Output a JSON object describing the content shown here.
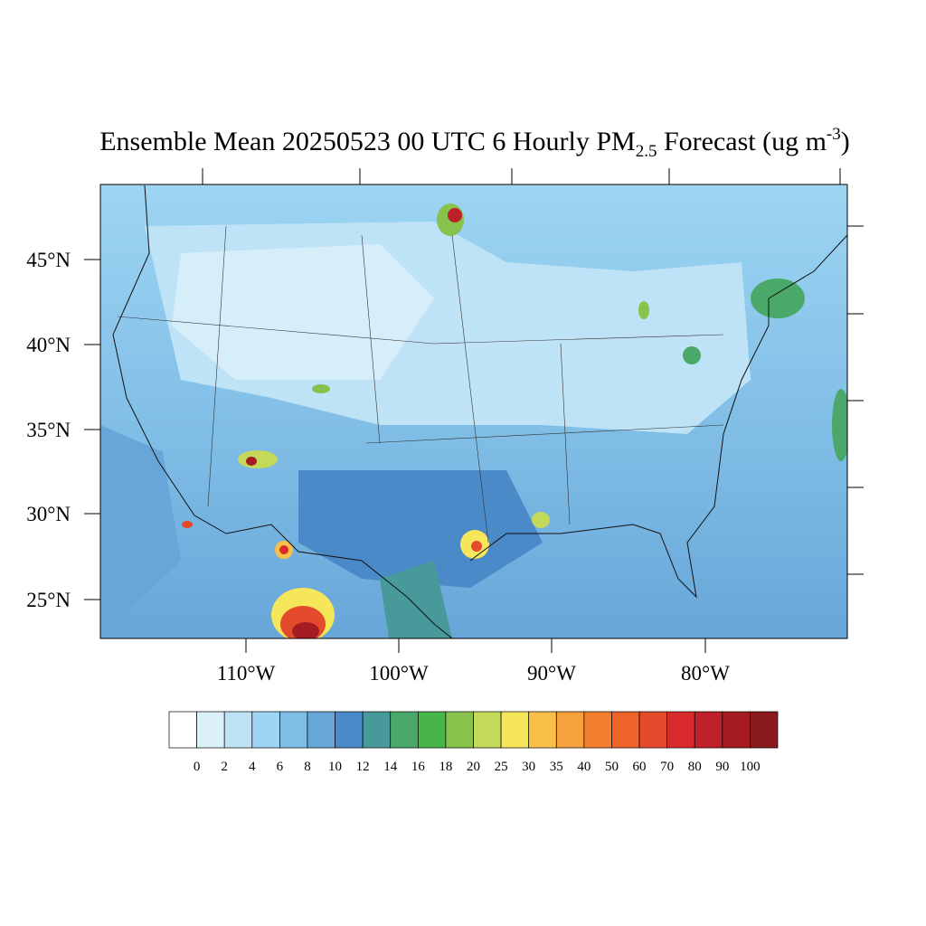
{
  "title": {
    "main": "Ensemble Mean 20250523 00 UTC 6 Hourly PM",
    "sub": "2.5",
    "mid": " Forecast (ug m",
    "sup": "-3",
    "end": ")"
  },
  "lat_labels": [
    "45°N",
    "40°N",
    "35°N",
    "30°N",
    "25°N"
  ],
  "lon_labels": [
    "110°W",
    "100°W",
    "90°W",
    "80°W"
  ],
  "colorbar": {
    "levels": [
      0,
      2,
      4,
      6,
      8,
      10,
      12,
      14,
      16,
      18,
      20,
      25,
      30,
      35,
      40,
      50,
      60,
      70,
      80,
      90,
      100
    ],
    "colors": [
      "#ffffff",
      "#dcf0fa",
      "#bfe3f6",
      "#9dd5f2",
      "#80bde6",
      "#67a6d8",
      "#4a8ac8",
      "#47999a",
      "#4aa96a",
      "#48b549",
      "#86c24c",
      "#c4d85a",
      "#f6e65a",
      "#f8c048",
      "#f7a03e",
      "#f47e30",
      "#ef6228",
      "#e44a2c",
      "#d92a2e",
      "#c0202a",
      "#a41c22",
      "#8a1a1c"
    ]
  }
}
